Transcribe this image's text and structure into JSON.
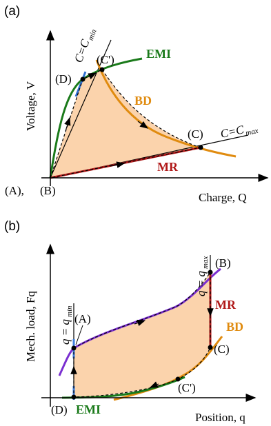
{
  "colors": {
    "emi": "#1a7a1a",
    "bd": "#e08b0f",
    "mr": "#b01818",
    "min_line": "#2f6fd0",
    "alt_blue": "#3f7fe0",
    "purple": "#7a2fd0",
    "fill": "#fbd3ac",
    "axis": "#000000"
  },
  "panel_a": {
    "label": "(a)",
    "y_axis": "Voltage, V",
    "x_axis": "Charge, Q",
    "cmin_label_main": "C=C",
    "cmin_label_sub": "min",
    "cmax_label_main": "C=C",
    "cmax_label_sub": "max",
    "emi_tag": "EMI",
    "bd_tag": "BD",
    "mr_tag": "MR",
    "points": {
      "A_B": "(A),",
      "B": "(B)",
      "C": "(C)",
      "C_prime": "(C')",
      "D": "(D)"
    }
  },
  "panel_b": {
    "label": "(b)",
    "y_axis": "Mech. load, Fq",
    "x_axis": "Position, q",
    "qmin_label_main": "q = q",
    "qmin_label_sub": "min",
    "qmax_label_main": "q = q",
    "qmax_label_sub": "max",
    "emi_tag": "EMI",
    "bd_tag": "BD",
    "mr_tag": "MR",
    "points": {
      "A": "(A)",
      "B": "(B)",
      "C": "(C)",
      "C_prime": "(C')",
      "D": "(D)"
    }
  }
}
